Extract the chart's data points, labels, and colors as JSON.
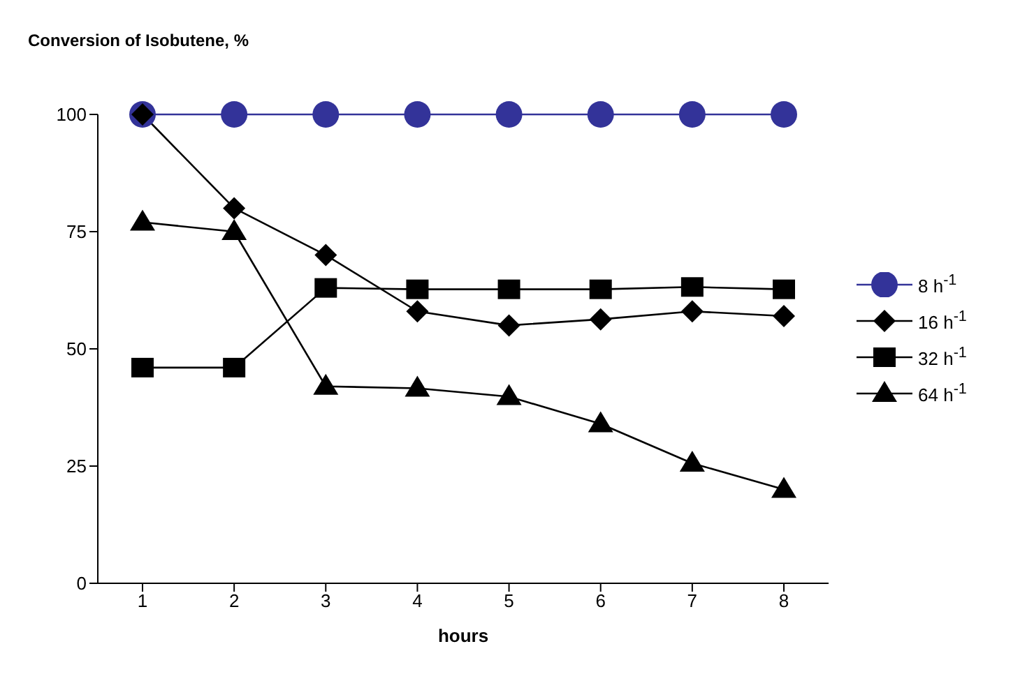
{
  "chart_data": {
    "type": "line",
    "title": "Conversion of Isobutene, %",
    "xlabel": "hours",
    "categories": [
      "1",
      "2",
      "3",
      "4",
      "5",
      "6",
      "7",
      "8"
    ],
    "series": [
      {
        "name": "8 h$^{-1}$",
        "color": "#333399",
        "marker": "circle",
        "values": [
          100,
          100,
          100,
          100,
          100,
          100,
          100,
          100
        ]
      },
      {
        "name": "16 h$^{-1}$",
        "color": "#000000",
        "marker": "diamond",
        "values": [
          100,
          80,
          70,
          58,
          55,
          56.3,
          58,
          57
        ]
      },
      {
        "name": "32 h$^{-1}$",
        "color": "#000000",
        "marker": "square",
        "values": [
          46,
          46,
          63,
          62.7,
          62.7,
          62.7,
          63.2,
          62.7
        ]
      },
      {
        "name": "64 h$^{-1}$",
        "color": "#000000",
        "marker": "triangle",
        "values": [
          77,
          75,
          42,
          41.6,
          39.8,
          34,
          25.6,
          20
        ]
      }
    ],
    "ylim": [
      0,
      100
    ],
    "yticks": [
      0,
      25,
      50,
      75,
      100
    ],
    "grid": false,
    "legend": "right"
  }
}
